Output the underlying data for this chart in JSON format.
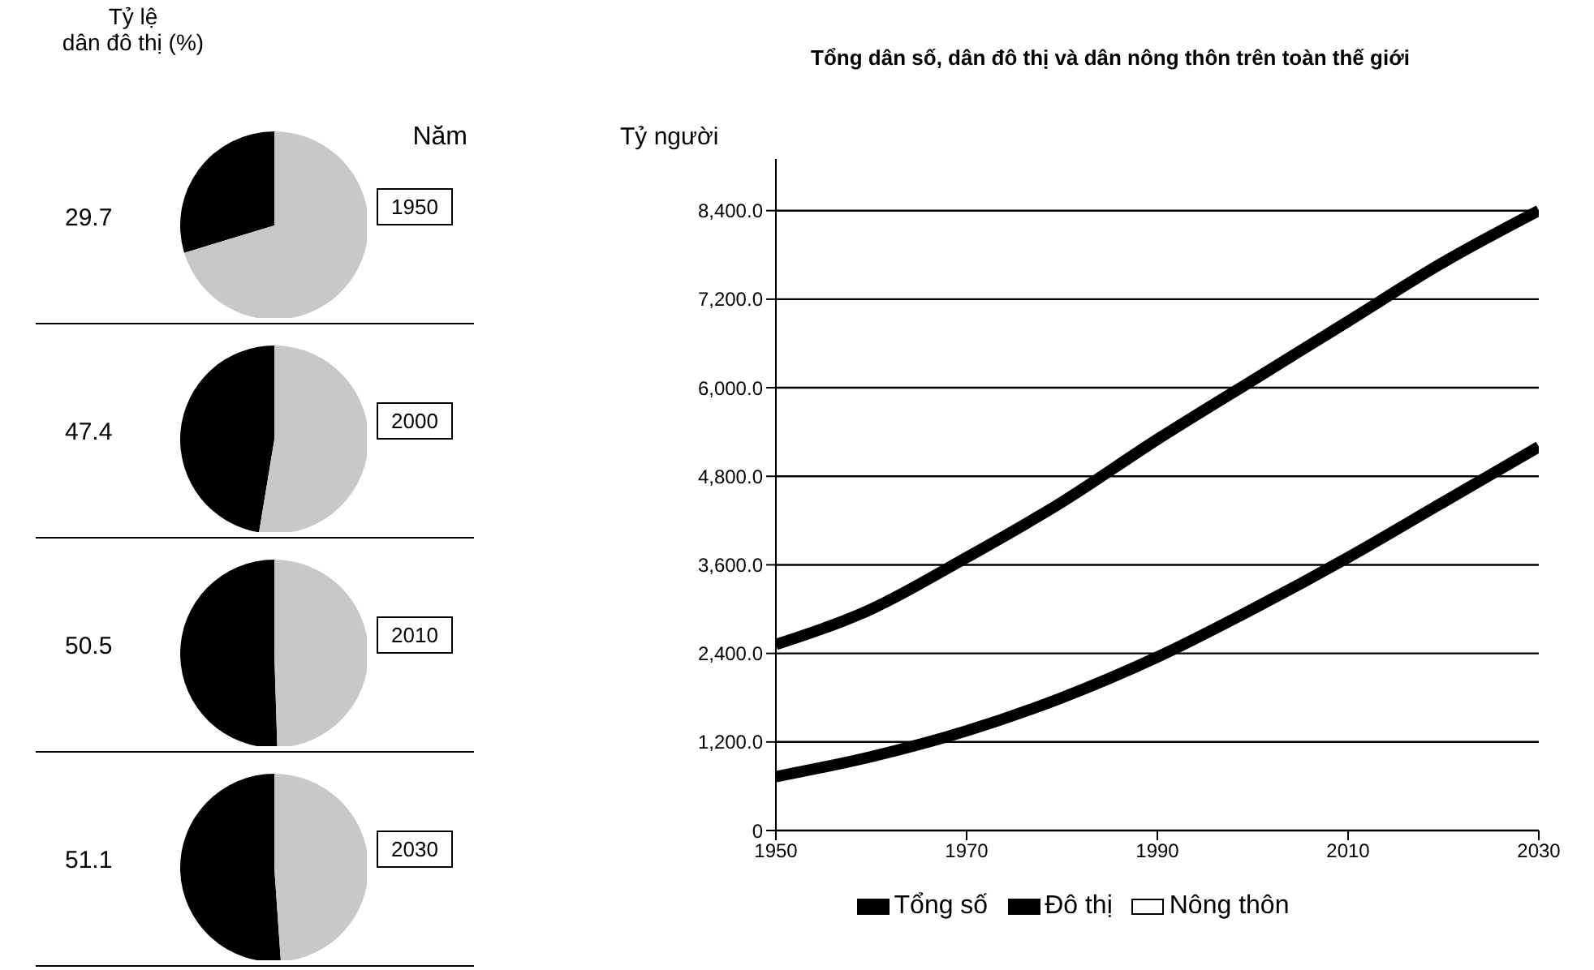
{
  "chart_data": [
    {
      "type": "pie",
      "title": "Tỷ lệ dân đô thị (%)",
      "annotations": [
        "Năm"
      ],
      "subtitle": "1950",
      "categories": [
        null,
        null
      ],
      "values": [
        29.7,
        70.3
      ],
      "colors": [
        "#000000",
        "#c8c8c8"
      ],
      "value_labels": [
        "29.7",
        null
      ]
    },
    {
      "type": "pie",
      "subtitle": "2000",
      "categories": [
        null,
        null
      ],
      "values": [
        47.4,
        52.6
      ],
      "colors": [
        "#000000",
        "#c8c8c8"
      ],
      "value_labels": [
        "47.4",
        null
      ]
    },
    {
      "type": "pie",
      "subtitle": "2010",
      "categories": [
        null,
        null
      ],
      "values": [
        50.5,
        49.5
      ],
      "colors": [
        "#000000",
        "#c8c8c8"
      ],
      "value_labels": [
        "50.5",
        null
      ]
    },
    {
      "type": "pie",
      "subtitle": "2030",
      "categories": [
        null,
        null
      ],
      "values": [
        51.1,
        48.9
      ],
      "colors": [
        "#000000",
        "#c8c8c8"
      ],
      "value_labels": [
        "51.1",
        null
      ]
    },
    {
      "type": "line",
      "title": "Tổng dân số, dân đô thị và dân nông thôn trên toàn thế giới",
      "ylabel": "Tỷ người",
      "x": [
        1950,
        1960,
        1970,
        1980,
        1990,
        2000,
        2010,
        2020,
        2030
      ],
      "series": [
        {
          "name": "Tổng số",
          "color": "#000000",
          "values": [
            2520,
            3000,
            3700,
            4450,
            5300,
            6100,
            6900,
            7700,
            8400
          ]
        },
        {
          "name": "Đô thị",
          "color": "#000000",
          "values": [
            730,
            1000,
            1350,
            1800,
            2350,
            3000,
            3700,
            4450,
            5200
          ]
        },
        {
          "name": "Nông thôn",
          "color": "#ffffff",
          "values": [
            null,
            null,
            null,
            null,
            null,
            null,
            null,
            null,
            null
          ]
        }
      ],
      "xlim": [
        1950,
        2030
      ],
      "xticks": [
        1950,
        1970,
        1990,
        2010,
        2030
      ],
      "ylim": [
        0,
        9100
      ],
      "yticks": [
        0,
        {
          "value": 1200,
          "label": "1,200.0"
        },
        {
          "value": 2400,
          "label": "2,400.0"
        },
        {
          "value": 3600,
          "label": "3,600.0"
        },
        {
          "value": 4800,
          "label": "4,800.0"
        },
        {
          "value": 6000,
          "label": "6,000.0"
        },
        {
          "value": 7200,
          "label": "7,200.0"
        },
        {
          "value": 8400,
          "label": "8,400.0"
        }
      ],
      "grid": "y",
      "legend": "bottom",
      "marker": "none",
      "line_style": "solid"
    }
  ]
}
